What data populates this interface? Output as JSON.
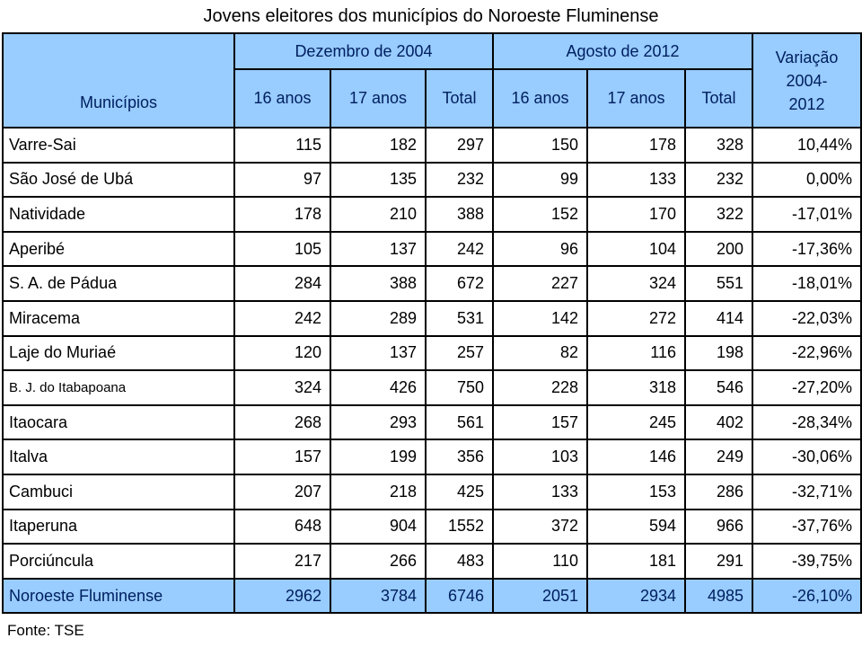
{
  "title": "Jovens eleitores dos municípios do Noroeste Fluminense",
  "source": "Fonte: TSE",
  "colors": {
    "header_bg": "#99CCFF",
    "header_text": "#002060",
    "border": "#000000",
    "body_bg": "#ffffff",
    "body_text": "#000000"
  },
  "table": {
    "header": {
      "municipios": "Municípios",
      "group_2004": "Dezembro de 2004",
      "group_2012": "Agosto de 2012",
      "variacao_lines": [
        "Variação",
        "2004-",
        "2012"
      ],
      "sub": [
        "16 anos",
        "17 anos",
        "Total",
        "16 anos",
        "17 anos",
        "Total"
      ]
    }
  },
  "chart_data": {
    "type": "table",
    "title": "Jovens eleitores dos municípios do Noroeste Fluminense",
    "source": "Fonte: TSE",
    "column_groups": [
      "Dezembro de 2004",
      "Agosto de 2012",
      "Variação 2004-2012"
    ],
    "columns": [
      "Municípios",
      "16 anos (2004)",
      "17 anos (2004)",
      "Total (2004)",
      "16 anos (2012)",
      "17 anos (2012)",
      "Total (2012)",
      "Variação 2004-2012"
    ],
    "rows": [
      [
        "Varre-Sai",
        115,
        182,
        297,
        150,
        178,
        328,
        "10,44%"
      ],
      [
        "São José de Ubá",
        97,
        135,
        232,
        99,
        133,
        232,
        "0,00%"
      ],
      [
        "Natividade",
        178,
        210,
        388,
        152,
        170,
        322,
        "-17,01%"
      ],
      [
        "Aperibé",
        105,
        137,
        242,
        96,
        104,
        200,
        "-17,36%"
      ],
      [
        "S. A. de Pádua",
        284,
        388,
        672,
        227,
        324,
        551,
        "-18,01%"
      ],
      [
        "Miracema",
        242,
        289,
        531,
        142,
        272,
        414,
        "-22,03%"
      ],
      [
        "Laje do Muriaé",
        120,
        137,
        257,
        82,
        116,
        198,
        "-22,96%"
      ],
      [
        "B. J. do Itabapoana",
        324,
        426,
        750,
        228,
        318,
        546,
        "-27,20%"
      ],
      [
        "Itaocara",
        268,
        293,
        561,
        157,
        245,
        402,
        "-28,34%"
      ],
      [
        "Italva",
        157,
        199,
        356,
        103,
        146,
        249,
        "-30,06%"
      ],
      [
        "Cambuci",
        207,
        218,
        425,
        133,
        153,
        286,
        "-32,71%"
      ],
      [
        "Itaperuna",
        648,
        904,
        1552,
        372,
        594,
        966,
        "-37,76%"
      ],
      [
        "Porciúncula",
        217,
        266,
        483,
        110,
        181,
        291,
        "-39,75%"
      ]
    ],
    "total_row": [
      "Noroeste Fluminense",
      2962,
      3784,
      6746,
      2051,
      2934,
      4985,
      "-26,10%"
    ]
  }
}
